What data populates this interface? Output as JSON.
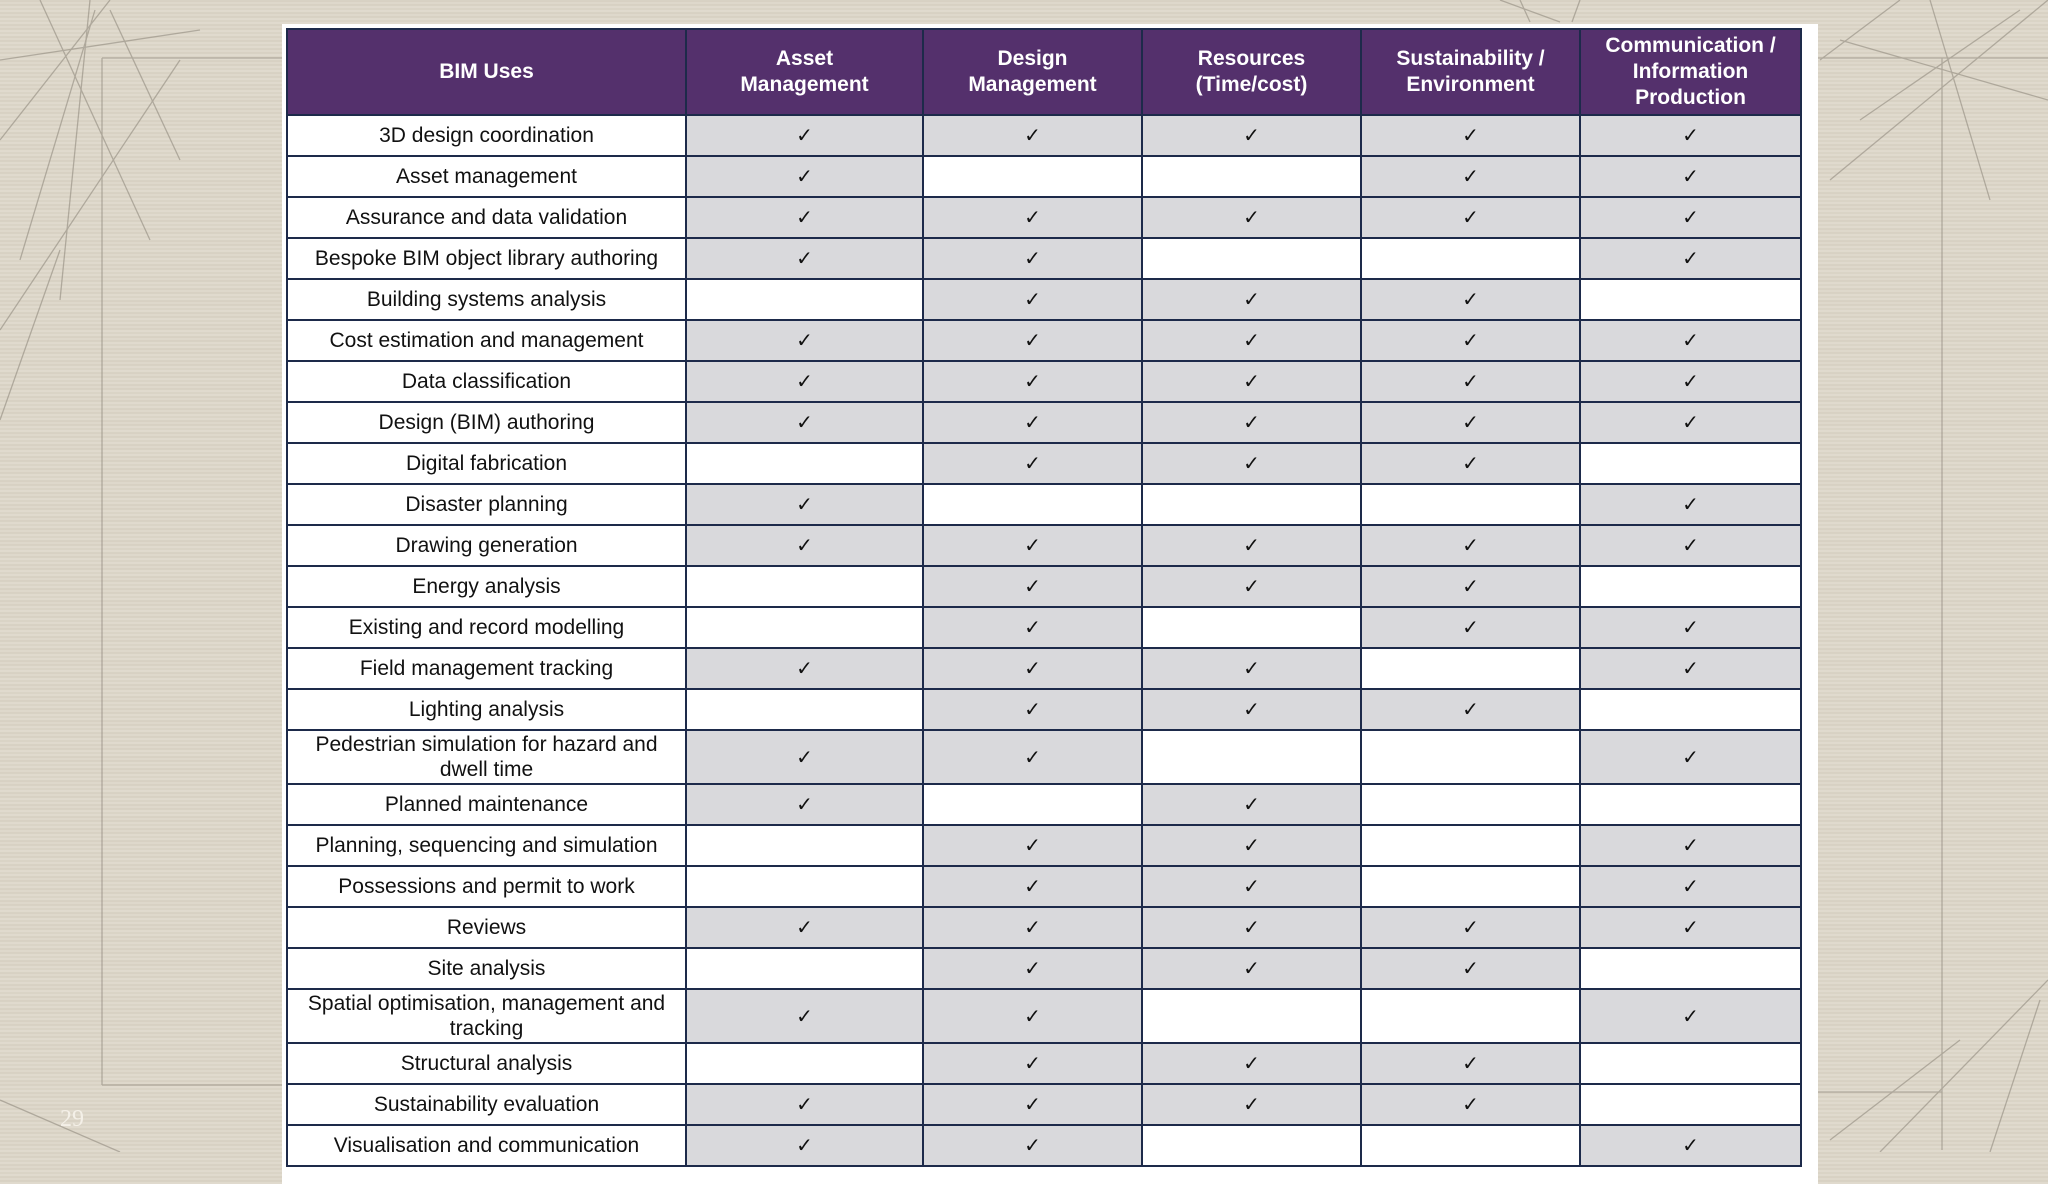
{
  "page_number": "29",
  "colors": {
    "header_bg": "#54306c",
    "header_text": "#ffffff",
    "checked_cell": "#d9d9dc",
    "empty_cell": "#ffffff",
    "border": "#1d2a4a",
    "background": "#ddd6c8"
  },
  "check_symbol": "✓",
  "table": {
    "headers": [
      "BIM Uses",
      "Asset\nManagement",
      "Design\nManagement",
      "Resources\n(Time/cost)",
      "Sustainability /\nEnvironment",
      "Communication /\nInformation\nProduction"
    ],
    "rows": [
      {
        "use": "3D design coordination",
        "checks": [
          true,
          true,
          true,
          true,
          true
        ]
      },
      {
        "use": "Asset management",
        "checks": [
          true,
          false,
          false,
          true,
          true
        ]
      },
      {
        "use": "Assurance and data validation",
        "checks": [
          true,
          true,
          true,
          true,
          true
        ]
      },
      {
        "use": "Bespoke BIM object library authoring",
        "checks": [
          true,
          true,
          false,
          false,
          true
        ]
      },
      {
        "use": "Building systems analysis",
        "checks": [
          false,
          true,
          true,
          true,
          false
        ]
      },
      {
        "use": "Cost estimation and management",
        "checks": [
          true,
          true,
          true,
          true,
          true
        ]
      },
      {
        "use": "Data classification",
        "checks": [
          true,
          true,
          true,
          true,
          true
        ]
      },
      {
        "use": "Design (BIM) authoring",
        "checks": [
          true,
          true,
          true,
          true,
          true
        ]
      },
      {
        "use": "Digital fabrication",
        "checks": [
          false,
          true,
          true,
          true,
          false
        ]
      },
      {
        "use": "Disaster planning",
        "checks": [
          true,
          false,
          false,
          false,
          true
        ]
      },
      {
        "use": "Drawing generation",
        "checks": [
          true,
          true,
          true,
          true,
          true
        ]
      },
      {
        "use": "Energy analysis",
        "checks": [
          false,
          true,
          true,
          true,
          false
        ]
      },
      {
        "use": "Existing and record modelling",
        "checks": [
          false,
          true,
          false,
          true,
          true
        ]
      },
      {
        "use": "Field management tracking",
        "checks": [
          true,
          true,
          true,
          false,
          true
        ]
      },
      {
        "use": "Lighting analysis",
        "checks": [
          false,
          true,
          true,
          true,
          false
        ]
      },
      {
        "use": "Pedestrian simulation for hazard and dwell time",
        "checks": [
          true,
          true,
          false,
          false,
          true
        ],
        "tall": true
      },
      {
        "use": "Planned maintenance",
        "checks": [
          true,
          false,
          true,
          false,
          false
        ]
      },
      {
        "use": "Planning, sequencing and simulation",
        "checks": [
          false,
          true,
          true,
          false,
          true
        ]
      },
      {
        "use": "Possessions and permit to work",
        "checks": [
          false,
          true,
          true,
          false,
          true
        ]
      },
      {
        "use": "Reviews",
        "checks": [
          true,
          true,
          true,
          true,
          true
        ]
      },
      {
        "use": "Site analysis",
        "checks": [
          false,
          true,
          true,
          true,
          false
        ]
      },
      {
        "use": "Spatial optimisation, management and tracking",
        "checks": [
          true,
          true,
          false,
          false,
          true
        ],
        "tall": true
      },
      {
        "use": "Structural analysis",
        "checks": [
          false,
          true,
          true,
          true,
          false
        ]
      },
      {
        "use": "Sustainability evaluation",
        "checks": [
          true,
          true,
          true,
          true,
          false
        ]
      },
      {
        "use": "Visualisation and communication",
        "checks": [
          true,
          true,
          false,
          false,
          true
        ]
      }
    ]
  }
}
